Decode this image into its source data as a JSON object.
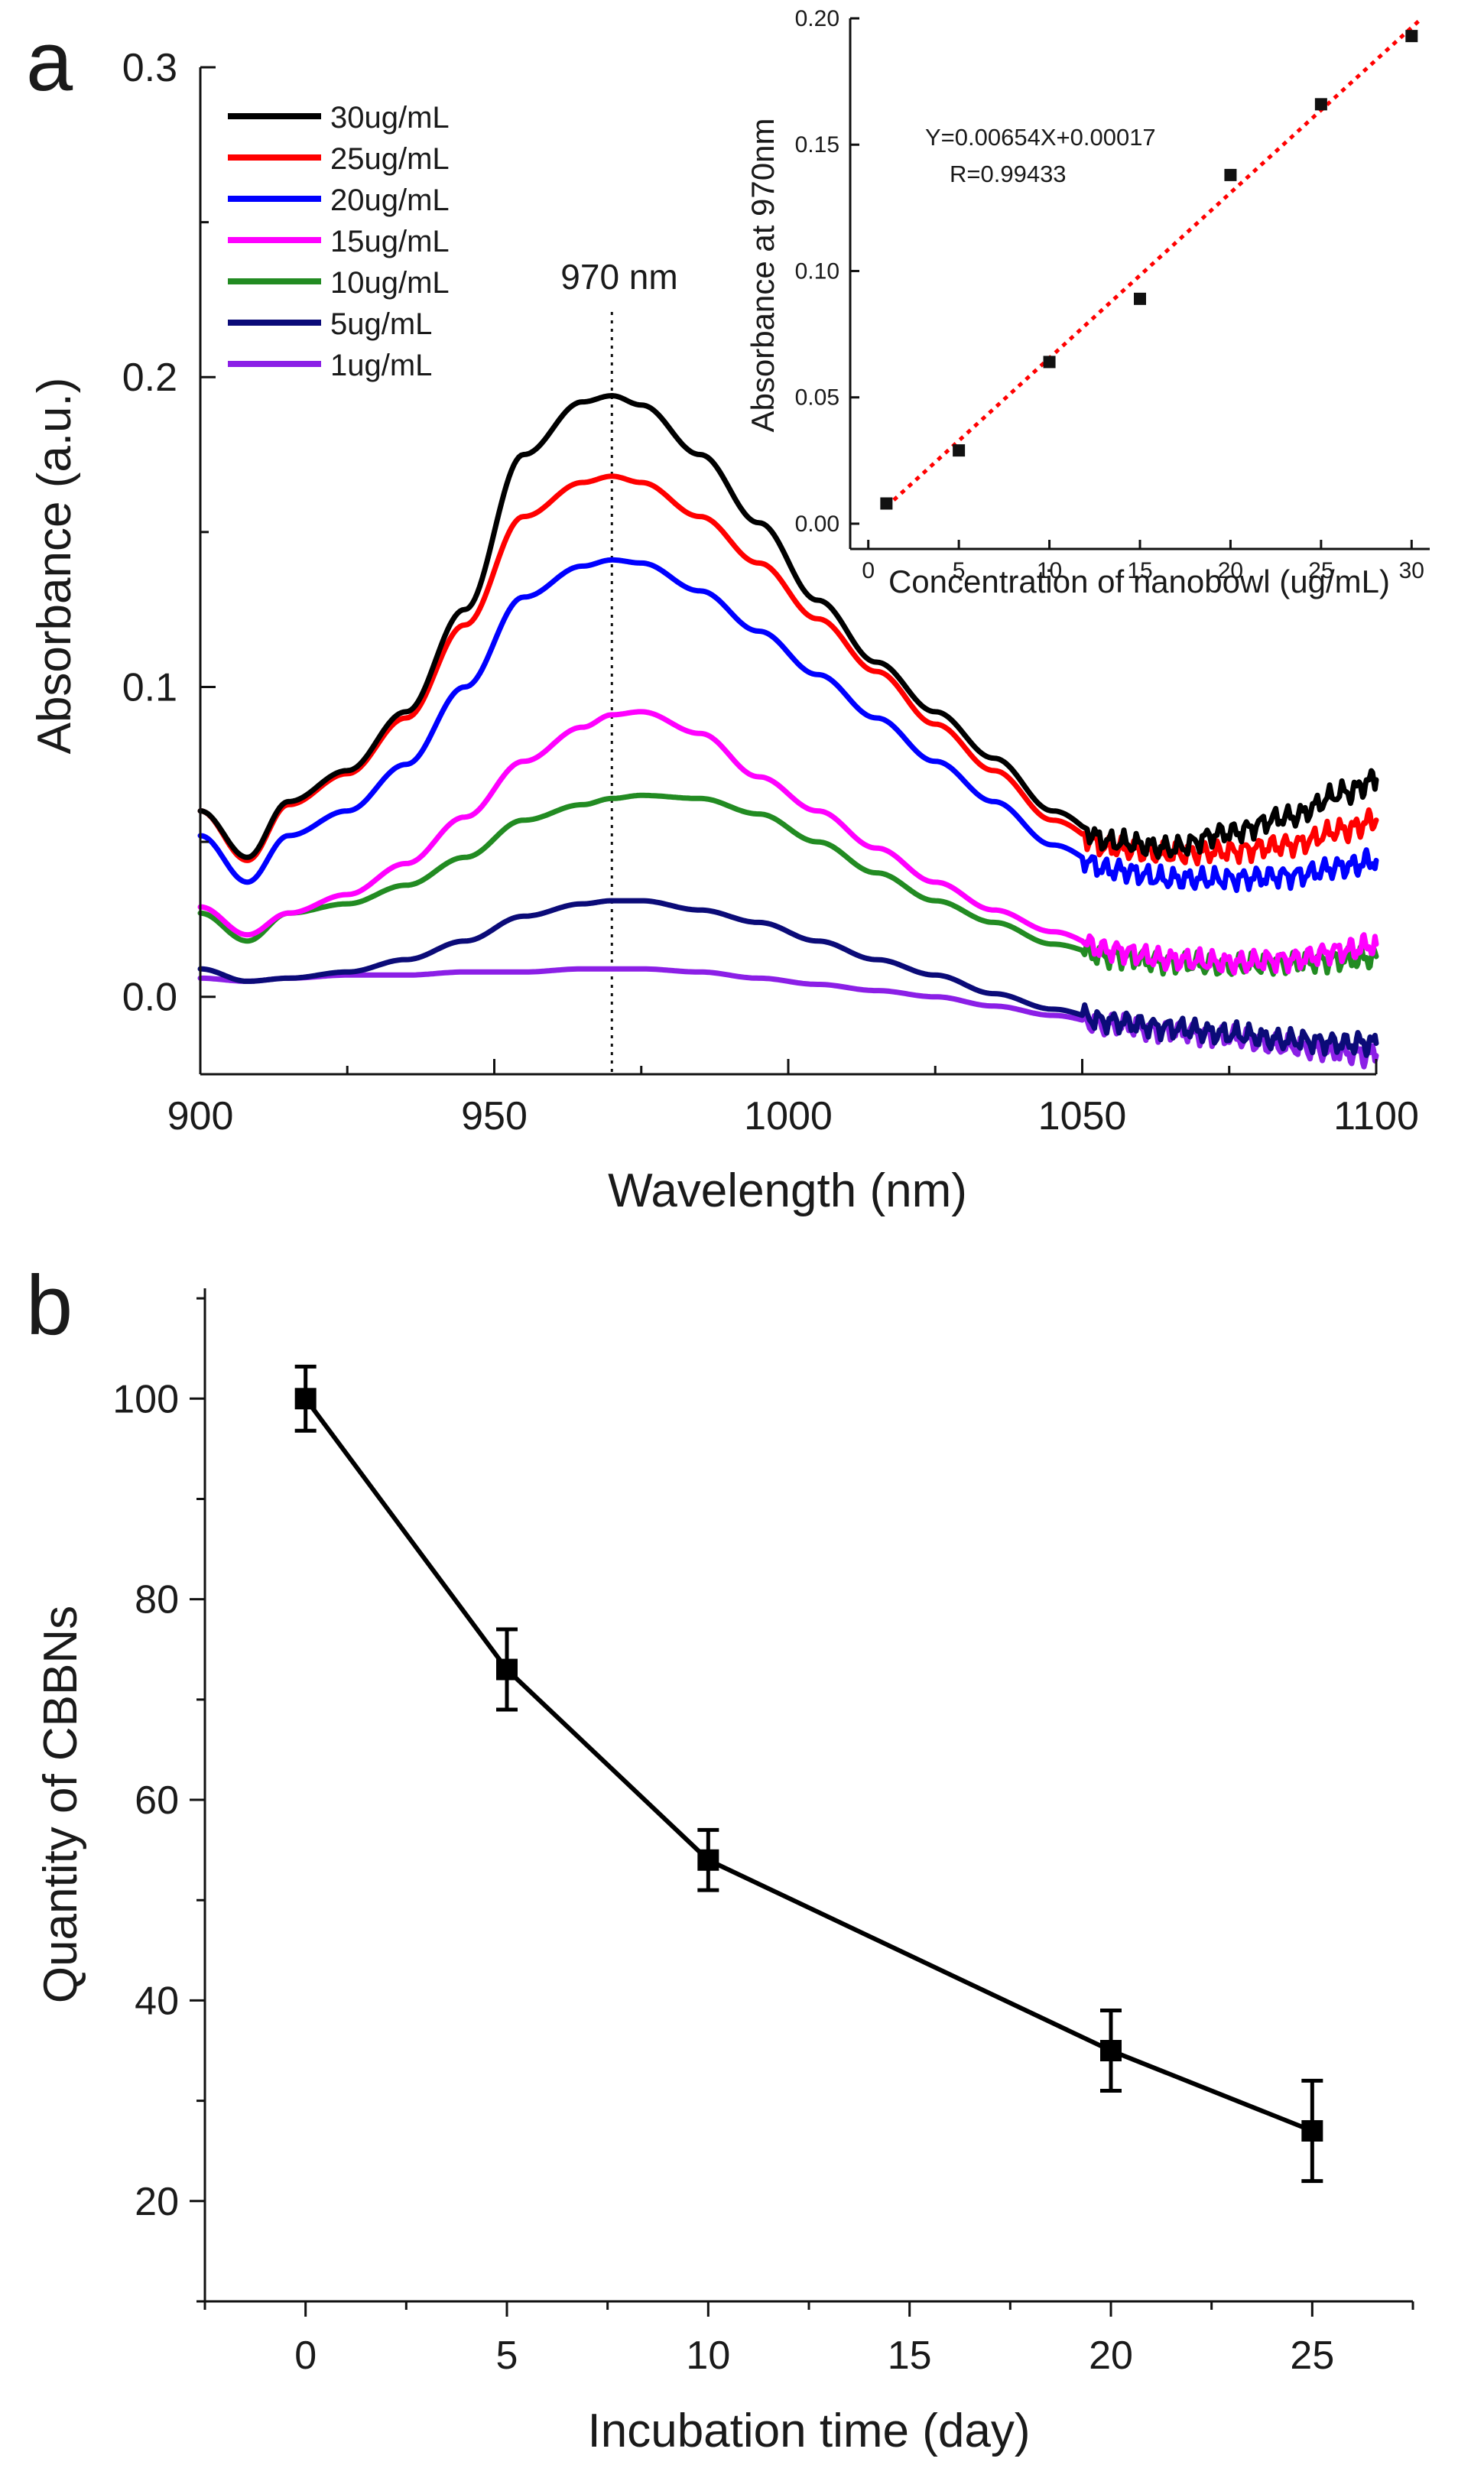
{
  "chart_data": [
    {
      "type": "line",
      "panel_label": "a",
      "title": "",
      "xlabel": "Wavelength (nm)",
      "ylabel": "Absorbance (a.u.)",
      "xlim": [
        900,
        1100
      ],
      "ylim": [
        -0.025,
        0.3
      ],
      "xticks": [
        900,
        950,
        1000,
        1050,
        1100
      ],
      "xtick_labels": [
        "900",
        "950",
        "1000",
        "1050",
        "1100"
      ],
      "yticks": [
        0.0,
        0.1,
        0.2,
        0.3
      ],
      "ytick_labels": [
        "0.0",
        "0.1",
        "0.2",
        "0.3"
      ],
      "legend_position": "top-left",
      "annotation": {
        "text": "970 nm",
        "x": 970,
        "style": "dotted vertical line"
      },
      "x": [
        900,
        908,
        915,
        925,
        935,
        945,
        955,
        965,
        970,
        975,
        985,
        995,
        1005,
        1015,
        1025,
        1035,
        1045,
        1055,
        1065,
        1075,
        1085,
        1095,
        1100
      ],
      "series": [
        {
          "name": "30ug/mL",
          "color": "#000000",
          "values": [
            0.06,
            0.045,
            0.063,
            0.073,
            0.092,
            0.125,
            0.175,
            0.192,
            0.194,
            0.191,
            0.175,
            0.153,
            0.128,
            0.108,
            0.092,
            0.077,
            0.06,
            0.05,
            0.048,
            0.053,
            0.058,
            0.066,
            0.07
          ]
        },
        {
          "name": "25ug/mL",
          "color": "#ff0000",
          "values": [
            0.06,
            0.044,
            0.062,
            0.072,
            0.09,
            0.12,
            0.155,
            0.166,
            0.168,
            0.166,
            0.155,
            0.14,
            0.122,
            0.105,
            0.088,
            0.073,
            0.057,
            0.048,
            0.046,
            0.047,
            0.049,
            0.054,
            0.057
          ]
        },
        {
          "name": "20ug/mL",
          "color": "#0000ff",
          "values": [
            0.052,
            0.037,
            0.052,
            0.06,
            0.075,
            0.1,
            0.129,
            0.139,
            0.141,
            0.14,
            0.131,
            0.118,
            0.104,
            0.09,
            0.076,
            0.063,
            0.049,
            0.041,
            0.038,
            0.038,
            0.039,
            0.042,
            0.044
          ]
        },
        {
          "name": "15ug/mL",
          "color": "#ff00ff",
          "values": [
            0.029,
            0.02,
            0.027,
            0.033,
            0.043,
            0.058,
            0.076,
            0.087,
            0.091,
            0.092,
            0.085,
            0.071,
            0.06,
            0.048,
            0.037,
            0.028,
            0.021,
            0.015,
            0.012,
            0.011,
            0.012,
            0.015,
            0.017
          ]
        },
        {
          "name": "10ug/mL",
          "color": "#228b22",
          "values": [
            0.027,
            0.018,
            0.027,
            0.03,
            0.036,
            0.045,
            0.057,
            0.062,
            0.064,
            0.065,
            0.064,
            0.059,
            0.05,
            0.04,
            0.031,
            0.024,
            0.017,
            0.013,
            0.011,
            0.01,
            0.011,
            0.012,
            0.013
          ]
        },
        {
          "name": "5ug/mL",
          "color": "#0b0b78",
          "values": [
            0.009,
            0.005,
            0.006,
            0.008,
            0.012,
            0.018,
            0.026,
            0.03,
            0.031,
            0.031,
            0.028,
            0.024,
            0.018,
            0.012,
            0.007,
            0.001,
            -0.004,
            -0.008,
            -0.01,
            -0.012,
            -0.014,
            -0.015,
            -0.015
          ]
        },
        {
          "name": "1ug/mL",
          "color": "#8b1fe6",
          "values": [
            0.006,
            0.005,
            0.006,
            0.007,
            0.007,
            0.008,
            0.008,
            0.009,
            0.009,
            0.009,
            0.008,
            0.006,
            0.004,
            0.002,
            0.0,
            -0.003,
            -0.006,
            -0.009,
            -0.011,
            -0.013,
            -0.016,
            -0.018,
            -0.019
          ]
        }
      ]
    },
    {
      "type": "scatter",
      "panel_label": "",
      "inset": true,
      "title": "",
      "xlabel": "Concentration of nanobowl (ug/mL)",
      "ylabel": "Absorbance at 970nm",
      "xlim": [
        -1,
        31
      ],
      "ylim": [
        -0.01,
        0.2
      ],
      "xticks": [
        0,
        5,
        10,
        15,
        20,
        25,
        30
      ],
      "xtick_labels": [
        "0",
        "5",
        "10",
        "15",
        "20",
        "25",
        "30"
      ],
      "yticks": [
        0.0,
        0.05,
        0.1,
        0.15,
        0.2
      ],
      "ytick_labels": [
        "0.00",
        "0.05",
        "0.10",
        "0.15",
        "0.20"
      ],
      "x": [
        1,
        5,
        10,
        15,
        20,
        25,
        30
      ],
      "values": [
        0.008,
        0.029,
        0.064,
        0.089,
        0.138,
        0.166,
        0.193
      ],
      "fit": {
        "slope": 0.00654,
        "intercept": 0.00017,
        "color": "#ff0000",
        "style": "dotted"
      },
      "fit_equation": "Y=0.00654X+0.00017",
      "fit_r": "R=0.99433"
    },
    {
      "type": "line",
      "panel_label": "b",
      "title": "",
      "xlabel": "Incubation time (day)",
      "ylabel": "Quantity of CBBNs",
      "xlim": [
        -2.5,
        27.5
      ],
      "ylim": [
        10,
        111
      ],
      "xticks": [
        0,
        5,
        10,
        15,
        20,
        25
      ],
      "xtick_labels": [
        "0",
        "5",
        "10",
        "15",
        "20",
        "25"
      ],
      "yticks": [
        20,
        40,
        60,
        80,
        100
      ],
      "ytick_labels": [
        "20",
        "40",
        "60",
        "80",
        "100"
      ],
      "x": [
        0,
        5,
        10,
        20,
        25
      ],
      "values": [
        100,
        73,
        54,
        35,
        27
      ],
      "errors": [
        3.2,
        4,
        3,
        4,
        5
      ],
      "color": "#000000",
      "marker": "square"
    }
  ]
}
